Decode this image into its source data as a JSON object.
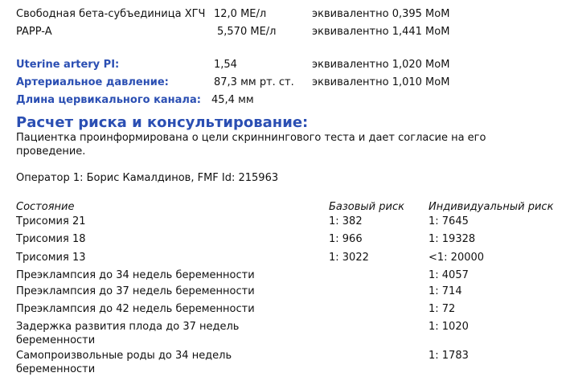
{
  "measurements": [
    {
      "label": "Свободная бета-субъединица ХГЧ",
      "value": "12,0 МЕ/л",
      "mom": "эквивалентно 0,395 MoM"
    },
    {
      "label": "PAPP-A",
      "value": "5,570 МЕ/л",
      "mom": "эквивалентно 1,441 MoM"
    }
  ],
  "biophysical": [
    {
      "label": "Uterine artery PI:",
      "value": "1,54",
      "mom": "эквивалентно 1,020 MoM"
    },
    {
      "label": "Артериальное давление:",
      "value": "87,3 мм рт. ст.",
      "mom": "эквивалентно 1,010 MoM"
    },
    {
      "label": "Длина цервикального канала:",
      "value": "45,4 мм",
      "mom": ""
    }
  ],
  "section_title": "Расчет риска и консультирование:",
  "consent_line1": "Пациентка проинформирована о цели скриннингового теста и дает согласие на его",
  "consent_line2": "проведение.",
  "operator": "Оператор 1: Борис Камалдинов, FMF Id: 215963",
  "table": {
    "headers": [
      "Состояние",
      "Базовый риск",
      "Индивидуальный риск"
    ],
    "rows": [
      {
        "c1": "Трисомия 21",
        "c2": "1: 382",
        "c3": "1: 7645"
      },
      {
        "c1": "Трисомия 18",
        "c2": "1: 966",
        "c3": "1: 19328"
      },
      {
        "c1": "Трисомия 13",
        "c2": "1: 3022",
        "c3": "<1: 20000"
      },
      {
        "c1": "Преэклампсия до 34 недель беременности",
        "c2": "",
        "c3": "1: 4057"
      },
      {
        "c1": "Преэклампсия до 37 недель беременности",
        "c2": "",
        "c3": "1: 714"
      },
      {
        "c1": "Преэклампсия до 42 недель беременности",
        "c2": "",
        "c3": "1: 72"
      },
      {
        "c1": "Задержка развития плода до 37 недель",
        "c1b": "беременности",
        "c2": "",
        "c3": "1: 1020"
      },
      {
        "c1": "Самопроизвольные роды до 34 недель",
        "c1b": "беременности",
        "c2": "",
        "c3": "1: 1783"
      }
    ]
  },
  "colors": {
    "accent": "#2b4fb3"
  }
}
